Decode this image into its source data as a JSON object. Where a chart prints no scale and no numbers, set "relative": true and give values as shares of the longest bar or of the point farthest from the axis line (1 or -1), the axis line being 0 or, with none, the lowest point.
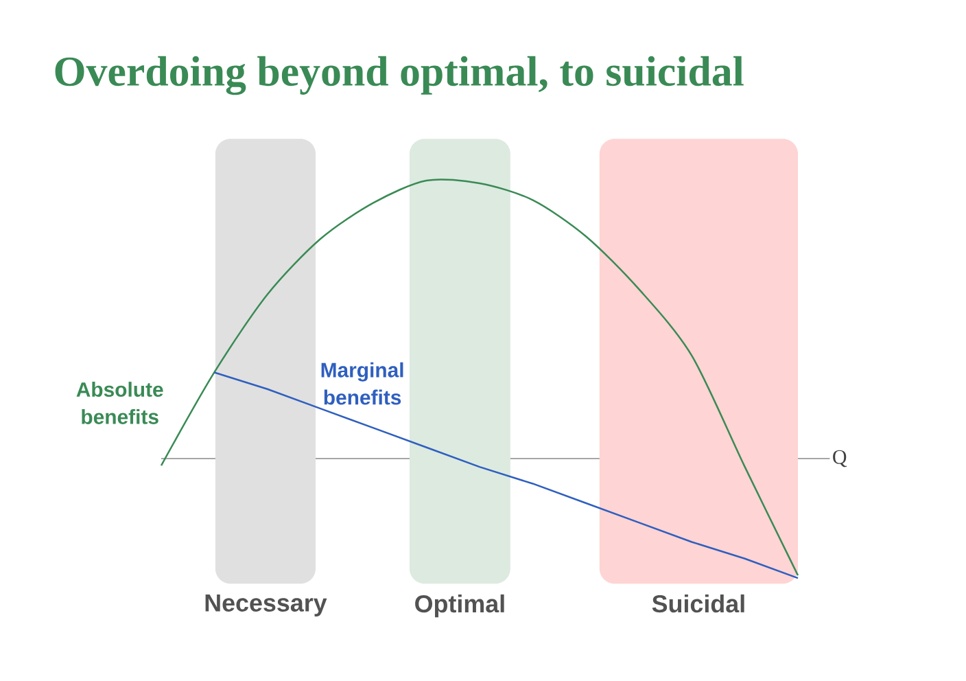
{
  "chart_data": {
    "type": "line",
    "title": "Overdoing beyond optimal, to suicidal",
    "xlabel": "Q",
    "relative": true,
    "legend": false,
    "categories": [
      null,
      null,
      null,
      null,
      null,
      null,
      null,
      null,
      null,
      null,
      null,
      null,
      null
    ],
    "series": [
      {
        "name": "Absolute benefits",
        "color": "#3a8a55",
        "values": [
          -0.025,
          0.31,
          0.59,
          0.79,
          0.92,
          1,
          0.99,
          0.93,
          0.8,
          0.61,
          0.37,
          -0.03,
          -0.42
        ]
      },
      {
        "name": "Marginal benefits",
        "color": "#2f5fbf",
        "values": [
          null,
          0.31,
          0.25,
          0.18,
          0.11,
          0.04,
          -0.03,
          -0.09,
          -0.16,
          -0.23,
          -0.3,
          -0.36,
          -0.43
        ]
      }
    ],
    "annotations": [
      "Necessary",
      "Optimal",
      "Suicidal"
    ]
  }
}
